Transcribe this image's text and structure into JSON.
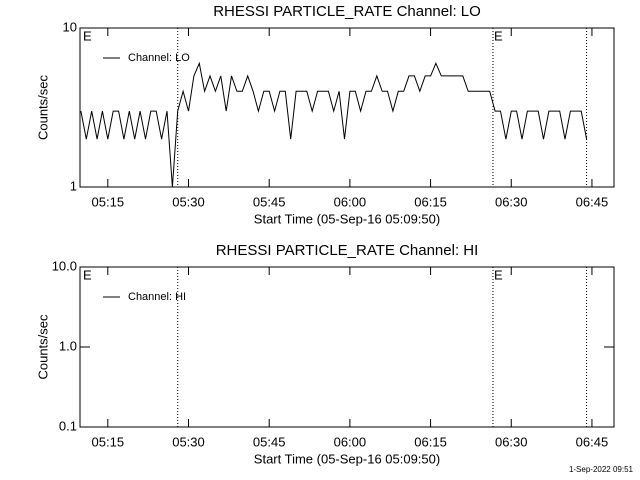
{
  "chart_data": [
    {
      "type": "line",
      "title": "RHESSI PARTICLE_RATE Channel: LO",
      "ylabel": "Counts/sec",
      "xlabel": "Start Time (05-Sep-16 05:09:50)",
      "log_y": true,
      "ylim": [
        1,
        10
      ],
      "yticks": [
        1,
        10
      ],
      "xlim": [
        309.83,
        409.1
      ],
      "xticks": [
        {
          "value": 315,
          "label": "05:15"
        },
        {
          "value": 330,
          "label": "05:30"
        },
        {
          "value": 345,
          "label": "05:45"
        },
        {
          "value": 360,
          "label": "06:00"
        },
        {
          "value": 375,
          "label": "06:15"
        },
        {
          "value": 390,
          "label": "06:30"
        },
        {
          "value": 405,
          "label": "06:45"
        }
      ],
      "vlines": [
        328.0,
        386.6,
        404.0
      ],
      "annotations": [
        {
          "text": "E",
          "x": 310.2
        },
        {
          "text": "E",
          "x": 386.6
        }
      ],
      "legend": "upper left",
      "series": [
        {
          "name": "Channel: LO",
          "color": "#000000",
          "x": [
            310,
            311,
            312,
            313,
            314,
            315,
            316,
            317,
            318,
            319,
            320,
            321,
            322,
            323,
            324,
            325,
            326,
            327,
            328,
            329,
            330,
            331,
            332,
            333,
            334,
            335,
            336,
            337,
            338,
            339,
            340,
            341,
            342,
            343,
            344,
            345,
            346,
            347,
            348,
            349,
            350,
            351,
            352,
            353,
            354,
            355,
            356,
            357,
            358,
            359,
            360,
            361,
            362,
            363,
            364,
            365,
            366,
            367,
            368,
            369,
            370,
            371,
            372,
            373,
            374,
            375,
            376,
            377,
            378,
            379,
            380,
            381,
            382,
            383,
            384,
            385,
            386,
            387,
            388,
            389,
            390,
            391,
            392,
            393,
            394,
            395,
            396,
            397,
            398,
            399,
            400,
            401,
            402,
            403,
            404
          ],
          "values": [
            3,
            2,
            3,
            2,
            3,
            2,
            3,
            3,
            2,
            3,
            2,
            3,
            2,
            3,
            3,
            2,
            3,
            1,
            3,
            4,
            3,
            5,
            6,
            4,
            5,
            4,
            5,
            3,
            5,
            4,
            4,
            5,
            4,
            3,
            4,
            4,
            3,
            4,
            4,
            2,
            4,
            4,
            4,
            3,
            4,
            4,
            4,
            3,
            4,
            2,
            4,
            4,
            3,
            4,
            4,
            5,
            4,
            4,
            3,
            4,
            4,
            5,
            5,
            4,
            5,
            5,
            6,
            5,
            5,
            5,
            5,
            5,
            4,
            4,
            4,
            4,
            4,
            3,
            3,
            2,
            3,
            3,
            2,
            3,
            3,
            3,
            2,
            3,
            3,
            3,
            2,
            3,
            3,
            3,
            2
          ]
        }
      ]
    },
    {
      "type": "line",
      "title": "RHESSI PARTICLE_RATE Channel: HI",
      "ylabel": "Counts/sec",
      "xlabel": "Start Time (05-Sep-16 05:09:50)",
      "log_y": true,
      "ylim": [
        0.1,
        10
      ],
      "yticks": [
        0.1,
        {
          "value": 1,
          "label": "1.0"
        },
        {
          "value": 10,
          "label": "10.0"
        }
      ],
      "xlim": [
        309.83,
        409.1
      ],
      "xticks": [
        {
          "value": 315,
          "label": "05:15"
        },
        {
          "value": 330,
          "label": "05:30"
        },
        {
          "value": 345,
          "label": "05:45"
        },
        {
          "value": 360,
          "label": "06:00"
        },
        {
          "value": 375,
          "label": "06:15"
        },
        {
          "value": 390,
          "label": "06:30"
        },
        {
          "value": 405,
          "label": "06:45"
        }
      ],
      "vlines": [
        328.0,
        386.6,
        404.0
      ],
      "annotations": [
        {
          "text": "E",
          "x": 310.2
        },
        {
          "text": "E",
          "x": 386.6
        }
      ],
      "legend": "upper left",
      "series": [
        {
          "name": "Channel: HI",
          "color": "#000000",
          "x": [],
          "values": []
        }
      ]
    }
  ],
  "footer": "1-Sep-2022 09:51"
}
